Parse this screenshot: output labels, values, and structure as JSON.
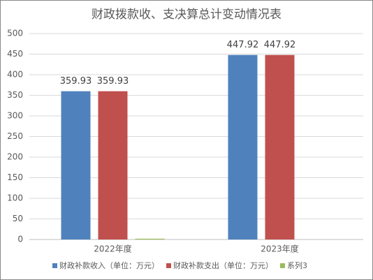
{
  "chart_data": {
    "type": "bar",
    "title": "财政拨款收、支决算总计变动情况表",
    "categories": [
      "2022年度",
      "2023年度"
    ],
    "series": [
      {
        "name": "财政补款收入（单位：万元）",
        "color": "#4f81bd",
        "values": [
          359.93,
          447.92
        ],
        "show_labels": true
      },
      {
        "name": "财政补款支出（单位：万元）",
        "color": "#c0504d",
        "values": [
          359.93,
          447.92
        ],
        "show_labels": true
      },
      {
        "name": "系列3",
        "color": "#9bbb59",
        "values": [
          2,
          0
        ],
        "show_labels": false
      }
    ],
    "ylim": [
      0,
      500
    ],
    "yticks": [
      0,
      50,
      100,
      150,
      200,
      250,
      300,
      350,
      400,
      450,
      500
    ],
    "grid": true,
    "legend": "bottom"
  }
}
